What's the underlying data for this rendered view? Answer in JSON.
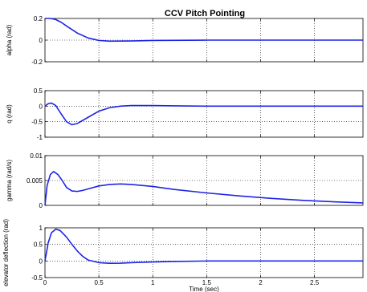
{
  "figure_title": "CCV Pitch Pointing",
  "chart_data": [
    {
      "type": "line",
      "ylabel": "alpha (rad)",
      "xlim": [
        0,
        2.95
      ],
      "ylim": [
        -0.2,
        0.2
      ],
      "yticks": [
        -0.2,
        0,
        0.2
      ],
      "ytick_labels": [
        "-0.2",
        "0",
        "0.2"
      ],
      "grid": true,
      "color": "#1f24e6",
      "x": [
        0,
        0.05,
        0.1,
        0.15,
        0.2,
        0.3,
        0.4,
        0.5,
        0.6,
        0.8,
        1.0,
        1.5,
        2.0,
        2.5,
        2.95
      ],
      "y": [
        0.2,
        0.2,
        0.19,
        0.165,
        0.13,
        0.065,
        0.02,
        -0.003,
        -0.01,
        -0.008,
        -0.003,
        0,
        0,
        0,
        0
      ]
    },
    {
      "type": "line",
      "ylabel": "q   (rad)",
      "xlim": [
        0,
        2.95
      ],
      "ylim": [
        -1,
        0.5
      ],
      "yticks": [
        -1,
        -0.5,
        0,
        0.5
      ],
      "ytick_labels": [
        "-1",
        "-0.5",
        "0",
        "0.5"
      ],
      "grid": true,
      "color": "#1f24e6",
      "x": [
        0,
        0.03,
        0.06,
        0.1,
        0.15,
        0.2,
        0.25,
        0.3,
        0.4,
        0.5,
        0.6,
        0.7,
        0.8,
        1.0,
        1.2,
        1.5,
        2.0,
        2.5,
        2.95
      ],
      "y": [
        0,
        0.08,
        0.1,
        0.02,
        -0.25,
        -0.5,
        -0.6,
        -0.56,
        -0.36,
        -0.16,
        -0.05,
        0.0,
        0.02,
        0.02,
        0.01,
        0.0,
        0.0,
        0.0,
        0.0
      ]
    },
    {
      "type": "line",
      "ylabel": "gamma (rad/s)",
      "xlim": [
        0,
        2.95
      ],
      "ylim": [
        0,
        0.01
      ],
      "yticks": [
        0,
        0.005,
        0.01
      ],
      "ytick_labels": [
        "0",
        "0.005",
        "0.01"
      ],
      "grid": true,
      "color": "#1f24e6",
      "x": [
        0,
        0.02,
        0.05,
        0.08,
        0.12,
        0.16,
        0.2,
        0.25,
        0.3,
        0.35,
        0.4,
        0.5,
        0.6,
        0.7,
        0.8,
        1.0,
        1.2,
        1.5,
        1.8,
        2.1,
        2.4,
        2.7,
        2.95
      ],
      "y": [
        0,
        0.004,
        0.0062,
        0.0068,
        0.0062,
        0.005,
        0.0036,
        0.0029,
        0.0028,
        0.003,
        0.0033,
        0.0039,
        0.0042,
        0.0043,
        0.0042,
        0.0038,
        0.0032,
        0.0025,
        0.0019,
        0.0014,
        0.001,
        0.0007,
        0.0005
      ]
    },
    {
      "type": "line",
      "ylabel": "elevator deflection (rad)",
      "xlabel": "Time (sec)",
      "xlim": [
        0,
        2.95
      ],
      "ylim": [
        -0.5,
        1
      ],
      "yticks": [
        -0.5,
        0,
        0.5,
        1
      ],
      "ytick_labels": [
        "-0.5",
        "0",
        "0.5",
        "1"
      ],
      "xticks": [
        0,
        0.5,
        1,
        1.5,
        2,
        2.5
      ],
      "xtick_labels": [
        "0",
        "0.5",
        "1",
        "1.5",
        "2",
        "2.5"
      ],
      "grid": true,
      "color": "#1f24e6",
      "x": [
        0,
        0.03,
        0.06,
        0.1,
        0.14,
        0.2,
        0.25,
        0.3,
        0.35,
        0.4,
        0.5,
        0.6,
        0.7,
        0.8,
        1.0,
        1.2,
        1.5,
        2.0,
        2.5,
        2.95
      ],
      "y": [
        0,
        0.55,
        0.85,
        0.96,
        0.92,
        0.72,
        0.5,
        0.3,
        0.14,
        0.03,
        -0.05,
        -0.07,
        -0.065,
        -0.05,
        -0.03,
        -0.015,
        0,
        0,
        0,
        0
      ]
    }
  ]
}
